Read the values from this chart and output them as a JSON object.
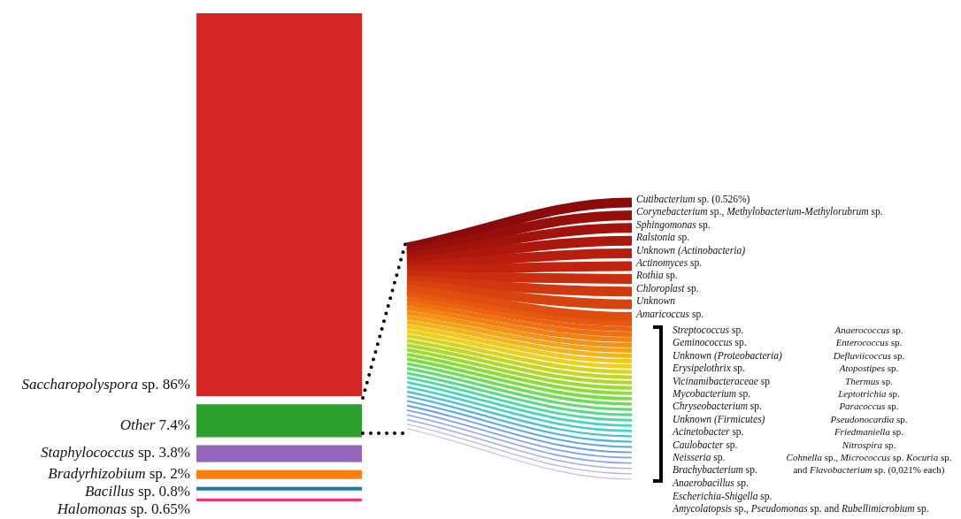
{
  "chart_data": {
    "type": "other",
    "categories": [
      "Saccharopolyspora sp.",
      "Other",
      "Staphylococcus sp.",
      "Bradyrhizobium sp.",
      "Bacillus sp.",
      "Halomonas sp."
    ],
    "values": [
      86,
      7.4,
      3.8,
      2,
      0.8,
      0.65
    ],
    "value_labels": [
      "86%",
      "7.4%",
      "3.8%",
      "2%",
      "0.8%",
      "0.65%"
    ],
    "colors": [
      "#d62728",
      "#2ca02c",
      "#9467bd",
      "#ff7f0e",
      "#1f77b4",
      "#f0357a"
    ],
    "annotations": [
      "Cutibacterium sp. (0.526%)",
      "Corynebacterium sp., Methylobacterium-Methylorubrum sp.",
      "Sphingomonas sp.",
      "Ralstonia sp.",
      "Unknown (Actinobacteria)",
      "Actinomyces sp.",
      "Rothia sp.",
      "Chloroplast sp.",
      "Unknown",
      "Amaricoccus sp.",
      "Streptococcus sp.",
      "Geminococcus sp.",
      "Unknown (Proteobacteria)",
      "Erysipelothrix sp.",
      "Vicinamibacteraceae sp",
      "Mycobacterium sp.",
      "Chryseobacterium sp.",
      "Unknown (Firmicutes)",
      "Acinetobacter sp.",
      "Caulobacter sp.",
      "Neisseria sp.",
      "Brachybacterium sp.",
      "Anaerobacillus sp.",
      "Anaerococcus sp.",
      "Enterococcus sp.",
      "Defluviicoccus sp.",
      "Atopostipes sp.",
      "Thermus sp.",
      "Leptotrichia sp.",
      "Paracoccus sp.",
      "Pseudonocardia sp.",
      "Friedmaniella sp.",
      "Nitrospira sp.",
      "Cohnella sp., Micrococcus sp. Kocuria sp.",
      "and Flavobacterium sp. (0,021% each)",
      "Escherichia-Shigella sp.",
      "Amycolatopsis sp., Pseudomonas sp. and Rubellimicrobium sp."
    ]
  }
}
